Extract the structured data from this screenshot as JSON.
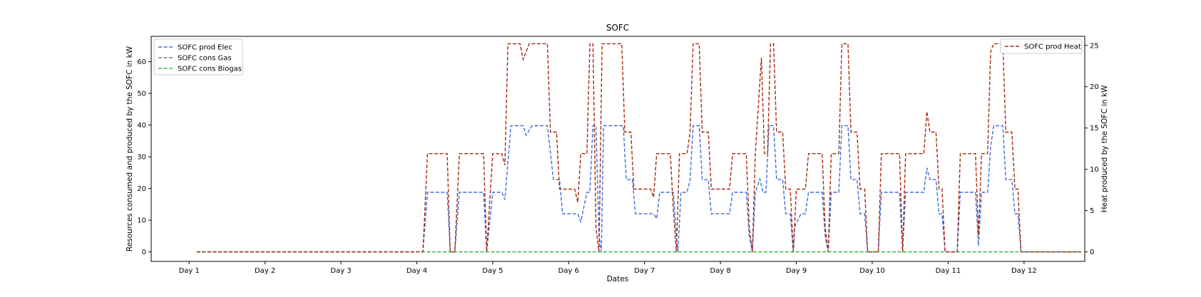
{
  "chart_data": {
    "type": "line",
    "title": "SOFC",
    "xlabel": "Dates",
    "ylabel": "Resources consumed and produced by the SOFC in kW",
    "y2label": "Heat produced by the SOFC in kW",
    "xlim": [
      0,
      12.3
    ],
    "ylim": [
      -3,
      68
    ],
    "y2lim": [
      -1.15,
      26.1
    ],
    "x_ticks": [
      {
        "x": 0.5,
        "label": "Day 1"
      },
      {
        "x": 1.5,
        "label": "Day 2"
      },
      {
        "x": 2.5,
        "label": "Day 3"
      },
      {
        "x": 3.5,
        "label": "Day 4"
      },
      {
        "x": 4.5,
        "label": "Day 5"
      },
      {
        "x": 5.5,
        "label": "Day 6"
      },
      {
        "x": 6.5,
        "label": "Day 7"
      },
      {
        "x": 7.5,
        "label": "Day 8"
      },
      {
        "x": 8.5,
        "label": "Day 9"
      },
      {
        "x": 9.5,
        "label": "Day 10"
      },
      {
        "x": 10.5,
        "label": "Day 11"
      },
      {
        "x": 11.5,
        "label": "Day 12"
      }
    ],
    "y_ticks": [
      0,
      10,
      20,
      30,
      40,
      50,
      60
    ],
    "y2_ticks": [
      0,
      5,
      10,
      15,
      20,
      25
    ],
    "grid": false,
    "legend_left": {
      "placement": "upper-left"
    },
    "legend_right": {
      "placement": "upper-right"
    },
    "series": [
      {
        "name": "SOFC prod Elec",
        "axis": "left",
        "color": "#3d6fdb",
        "dash": "dashed",
        "points": [
          [
            0.6,
            0
          ],
          [
            3.58,
            0
          ],
          [
            3.64,
            18.8
          ],
          [
            3.9,
            18.8
          ],
          [
            3.94,
            0
          ],
          [
            4.0,
            0
          ],
          [
            4.06,
            18.8
          ],
          [
            4.38,
            18.8
          ],
          [
            4.42,
            0
          ],
          [
            4.5,
            18.8
          ],
          [
            4.62,
            18.8
          ],
          [
            4.66,
            16.5
          ],
          [
            4.74,
            39.8
          ],
          [
            4.9,
            39.8
          ],
          [
            4.94,
            36.8
          ],
          [
            5.02,
            39.8
          ],
          [
            5.22,
            39.8
          ],
          [
            5.3,
            22.8
          ],
          [
            5.38,
            22.8
          ],
          [
            5.42,
            12
          ],
          [
            5.62,
            12
          ],
          [
            5.66,
            9.5
          ],
          [
            5.74,
            18.8
          ],
          [
            5.78,
            18.8
          ],
          [
            5.82,
            39.8
          ],
          [
            5.86,
            39.8
          ],
          [
            5.9,
            5
          ],
          [
            5.93,
            0
          ],
          [
            5.96,
            39.8
          ],
          [
            6.22,
            39.8
          ],
          [
            6.26,
            22.8
          ],
          [
            6.34,
            22.8
          ],
          [
            6.38,
            12
          ],
          [
            6.62,
            12
          ],
          [
            6.66,
            10.5
          ],
          [
            6.7,
            18.8
          ],
          [
            6.88,
            18.8
          ],
          [
            6.92,
            5
          ],
          [
            6.94,
            0
          ],
          [
            6.98,
            18.8
          ],
          [
            7.06,
            18.8
          ],
          [
            7.1,
            22.8
          ],
          [
            7.14,
            39.8
          ],
          [
            7.22,
            39.8
          ],
          [
            7.26,
            22.8
          ],
          [
            7.34,
            22.8
          ],
          [
            7.38,
            12
          ],
          [
            7.62,
            12
          ],
          [
            7.66,
            18.8
          ],
          [
            7.84,
            18.8
          ],
          [
            7.88,
            5
          ],
          [
            7.92,
            0
          ],
          [
            7.96,
            18.8
          ],
          [
            8.02,
            23
          ],
          [
            8.06,
            18.8
          ],
          [
            8.1,
            18.8
          ],
          [
            8.14,
            39.8
          ],
          [
            8.2,
            39.8
          ],
          [
            8.24,
            22.8
          ],
          [
            8.32,
            22.8
          ],
          [
            8.36,
            12
          ],
          [
            8.42,
            12
          ],
          [
            8.46,
            0
          ],
          [
            8.48,
            8
          ],
          [
            8.56,
            12
          ],
          [
            8.62,
            12
          ],
          [
            8.66,
            18.8
          ],
          [
            8.84,
            18.8
          ],
          [
            8.88,
            5
          ],
          [
            8.92,
            0
          ],
          [
            8.96,
            18.8
          ],
          [
            9.06,
            18.8
          ],
          [
            9.1,
            39.8
          ],
          [
            9.18,
            39.8
          ],
          [
            9.22,
            22.8
          ],
          [
            9.3,
            22.8
          ],
          [
            9.34,
            12
          ],
          [
            9.4,
            12
          ],
          [
            9.44,
            0
          ],
          [
            9.58,
            0
          ],
          [
            9.62,
            18.8
          ],
          [
            9.86,
            18.8
          ],
          [
            9.9,
            0
          ],
          [
            9.94,
            18.8
          ],
          [
            10.18,
            18.8
          ],
          [
            10.22,
            26.5
          ],
          [
            10.26,
            22.8
          ],
          [
            10.34,
            22.8
          ],
          [
            10.38,
            12
          ],
          [
            10.42,
            12
          ],
          [
            10.46,
            0
          ],
          [
            10.62,
            0
          ],
          [
            10.66,
            18.8
          ],
          [
            10.86,
            18.8
          ],
          [
            10.9,
            2
          ],
          [
            10.94,
            18.8
          ],
          [
            11.02,
            18.8
          ],
          [
            11.06,
            33
          ],
          [
            11.1,
            39.8
          ],
          [
            11.22,
            39.8
          ],
          [
            11.26,
            22.8
          ],
          [
            11.34,
            22.8
          ],
          [
            11.38,
            12
          ],
          [
            11.42,
            12
          ],
          [
            11.46,
            0
          ],
          [
            12.25,
            0
          ]
        ]
      },
      {
        "name": "SOFC cons Gas",
        "axis": "left",
        "color": "#7f7f7f",
        "dash": "dashed",
        "points": [
          [
            0.6,
            0
          ],
          [
            12.25,
            0
          ]
        ]
      },
      {
        "name": "SOFC cons Biogas",
        "axis": "left",
        "color": "#3cc43c",
        "dash": "dashed",
        "points": [
          [
            0.6,
            0
          ],
          [
            12.25,
            0
          ]
        ]
      },
      {
        "name": "SOFC prod Heat",
        "axis": "right",
        "color": "#a62a0e",
        "dash": "dashed",
        "points": [
          [
            0.6,
            0
          ],
          [
            3.58,
            0
          ],
          [
            3.64,
            11.9
          ],
          [
            3.9,
            11.9
          ],
          [
            3.94,
            0
          ],
          [
            4.0,
            0
          ],
          [
            4.06,
            11.9
          ],
          [
            4.38,
            11.9
          ],
          [
            4.42,
            0
          ],
          [
            4.46,
            6
          ],
          [
            4.5,
            11.9
          ],
          [
            4.62,
            11.9
          ],
          [
            4.66,
            10.5
          ],
          [
            4.7,
            25.2
          ],
          [
            4.86,
            25.2
          ],
          [
            4.9,
            23.3
          ],
          [
            4.98,
            25.2
          ],
          [
            5.22,
            25.2
          ],
          [
            5.26,
            14.5
          ],
          [
            5.34,
            14.5
          ],
          [
            5.38,
            7.6
          ],
          [
            5.58,
            7.6
          ],
          [
            5.62,
            6
          ],
          [
            5.66,
            11.9
          ],
          [
            5.74,
            11.9
          ],
          [
            5.78,
            25.2
          ],
          [
            5.82,
            25.2
          ],
          [
            5.86,
            3
          ],
          [
            5.9,
            0
          ],
          [
            5.94,
            25.2
          ],
          [
            6.2,
            25.2
          ],
          [
            6.24,
            14.5
          ],
          [
            6.32,
            14.5
          ],
          [
            6.36,
            7.6
          ],
          [
            6.58,
            7.6
          ],
          [
            6.62,
            6.6
          ],
          [
            6.66,
            11.9
          ],
          [
            6.84,
            11.9
          ],
          [
            6.88,
            5
          ],
          [
            6.92,
            0
          ],
          [
            6.96,
            11.9
          ],
          [
            7.06,
            11.9
          ],
          [
            7.1,
            14.5
          ],
          [
            7.14,
            25.2
          ],
          [
            7.22,
            25.2
          ],
          [
            7.26,
            14.5
          ],
          [
            7.34,
            14.5
          ],
          [
            7.38,
            7.6
          ],
          [
            7.62,
            7.6
          ],
          [
            7.66,
            11.9
          ],
          [
            7.84,
            11.9
          ],
          [
            7.88,
            3
          ],
          [
            7.92,
            0
          ],
          [
            7.96,
            11.9
          ],
          [
            8.04,
            23.5
          ],
          [
            8.08,
            11.9
          ],
          [
            8.12,
            11.9
          ],
          [
            8.16,
            25.2
          ],
          [
            8.2,
            25.2
          ],
          [
            8.24,
            14.5
          ],
          [
            8.32,
            14.5
          ],
          [
            8.36,
            7.6
          ],
          [
            8.42,
            7.6
          ],
          [
            8.46,
            0
          ],
          [
            8.5,
            7.6
          ],
          [
            8.62,
            7.6
          ],
          [
            8.66,
            11.9
          ],
          [
            8.84,
            11.9
          ],
          [
            8.88,
            3
          ],
          [
            8.92,
            0
          ],
          [
            8.96,
            11.9
          ],
          [
            9.06,
            11.9
          ],
          [
            9.1,
            25.2
          ],
          [
            9.18,
            25.2
          ],
          [
            9.22,
            14.5
          ],
          [
            9.3,
            14.5
          ],
          [
            9.34,
            7.6
          ],
          [
            9.4,
            7.6
          ],
          [
            9.44,
            0
          ],
          [
            9.58,
            0
          ],
          [
            9.62,
            11.9
          ],
          [
            9.86,
            11.9
          ],
          [
            9.9,
            0
          ],
          [
            9.94,
            11.9
          ],
          [
            10.18,
            11.9
          ],
          [
            10.22,
            17
          ],
          [
            10.26,
            14.5
          ],
          [
            10.34,
            14.5
          ],
          [
            10.38,
            7.6
          ],
          [
            10.42,
            7.6
          ],
          [
            10.46,
            0
          ],
          [
            10.62,
            0
          ],
          [
            10.66,
            11.9
          ],
          [
            10.86,
            11.9
          ],
          [
            10.9,
            2
          ],
          [
            10.94,
            11.9
          ],
          [
            11.02,
            11.9
          ],
          [
            11.06,
            24.2
          ],
          [
            11.1,
            25.2
          ],
          [
            11.22,
            25.2
          ],
          [
            11.26,
            14.5
          ],
          [
            11.34,
            14.5
          ],
          [
            11.38,
            7.6
          ],
          [
            11.42,
            7.6
          ],
          [
            11.46,
            0
          ],
          [
            12.25,
            0
          ]
        ]
      }
    ]
  }
}
